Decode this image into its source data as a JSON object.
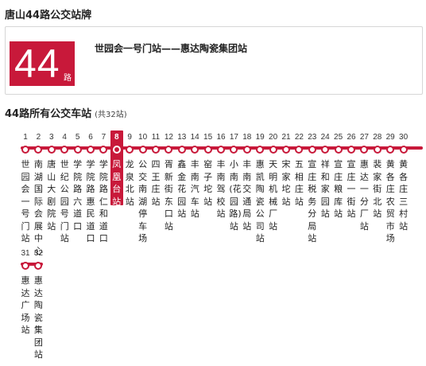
{
  "page_title": "唐山44路公交站牌",
  "route": {
    "number": "44",
    "suffix": "路",
    "direction": "世园会一号门站——惠达陶瓷集团站"
  },
  "stations_section": {
    "title": "44路所有公交车站",
    "count_label": "(共32站)"
  },
  "current_stop_index": 7,
  "colors": {
    "accent": "#c8193a",
    "text": "#222222",
    "border": "#d6d6d6"
  },
  "stops": [
    {
      "n": "1",
      "name": "世园会一号门站"
    },
    {
      "n": "2",
      "name": "南湖国际会展中心"
    },
    {
      "n": "3",
      "name": "唐山大剧院站"
    },
    {
      "n": "4",
      "name": "世纪公园号门站"
    },
    {
      "n": "5",
      "name": "学院路六道口"
    },
    {
      "n": "6",
      "name": "学院路惠民道口"
    },
    {
      "n": "7",
      "name": "学院路仁和道口"
    },
    {
      "n": "8",
      "name": "凤凰台站"
    },
    {
      "n": "9",
      "name": "龙泉北站"
    },
    {
      "n": "10",
      "name": "公交南湖停车场"
    },
    {
      "n": "11",
      "name": "四王庄站"
    },
    {
      "n": "12",
      "name": "胥新街东口站"
    },
    {
      "n": "13",
      "name": "鑫金花园站"
    },
    {
      "n": "14",
      "name": "丰南汽车站"
    },
    {
      "n": "15",
      "name": "窑子坨站"
    },
    {
      "n": "16",
      "name": "丰南驾校站"
    },
    {
      "n": "17",
      "name": "小南(花园路)站"
    },
    {
      "n": "18",
      "name": "丰南交通局站"
    },
    {
      "n": "19",
      "name": "惠凯陶瓷公司站"
    },
    {
      "n": "20",
      "name": "天明机械厂站"
    },
    {
      "n": "21",
      "name": "宋家坨站"
    },
    {
      "n": "22",
      "name": "五相庄站"
    },
    {
      "n": "23",
      "name": "宣庄税务分局站"
    },
    {
      "n": "24",
      "name": "祥和家园站"
    },
    {
      "n": "25",
      "name": "宣庄粮库站"
    },
    {
      "n": "26",
      "name": "宣庄一街站"
    },
    {
      "n": "27",
      "name": "惠达一分厂站"
    },
    {
      "n": "28",
      "name": "裴家街北站"
    },
    {
      "n": "29",
      "name": "黄各庄农贸市场"
    },
    {
      "n": "30",
      "name": "黄各庄三村站"
    },
    {
      "n": "31",
      "name": "惠达广场站"
    },
    {
      "n": "32",
      "name": "惠达陶瓷集团站"
    }
  ]
}
